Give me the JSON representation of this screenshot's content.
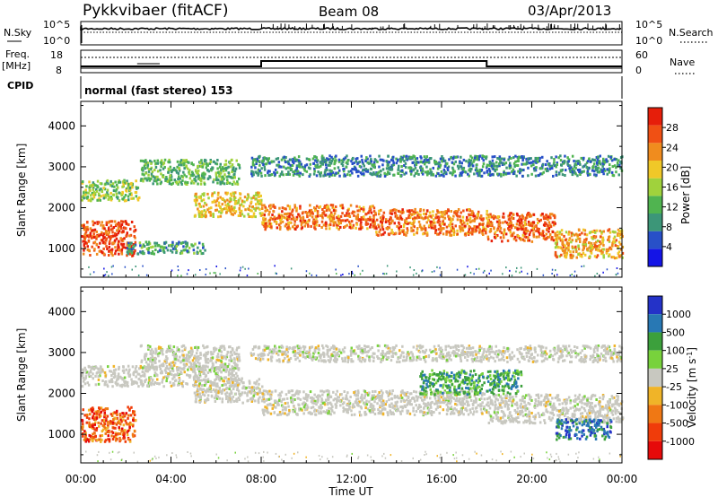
{
  "header": {
    "station": "Pykkvibaer (fitACF)",
    "beam": "Beam 08",
    "date": "03/Apr/2013"
  },
  "noise_panel": {
    "left_label": "N.Sky",
    "right_label": "N.Search",
    "left_ticks": [
      "10^5",
      "10^0"
    ],
    "right_ticks": [
      "10^5",
      "10^0"
    ]
  },
  "freq_panel": {
    "left_label_1": "Freq.",
    "left_label_2": "[MHz]",
    "left_ticks": [
      "18",
      "8"
    ],
    "right_label": "Nave",
    "right_ticks": [
      "60",
      "0"
    ]
  },
  "cpid": {
    "label": "CPID",
    "text": "normal (fast stereo) 153"
  },
  "chart_data": [
    {
      "type": "heatmap",
      "name": "power",
      "ylabel": "Slant Range [km]",
      "y_ticks": [
        "1000",
        "2000",
        "3000",
        "4000"
      ],
      "ylim": [
        300,
        4600
      ],
      "xlim": [
        0,
        24
      ],
      "colorbar": {
        "label": "Power [dB]",
        "ticks": [
          "4",
          "8",
          "12",
          "16",
          "20",
          "24",
          "28"
        ],
        "range": [
          0,
          32
        ],
        "colors": [
          "#1414e6",
          "#2850c8",
          "#3c9678",
          "#50b450",
          "#a0d23c",
          "#f0c828",
          "#f08c1e",
          "#f05014",
          "#e61e0a"
        ]
      },
      "echo_bands": [
        {
          "x": [
            0.0,
            2.4
          ],
          "y": [
            850,
            1700
          ],
          "level": 28
        },
        {
          "x": [
            0.0,
            2.6
          ],
          "y": [
            2200,
            2700
          ],
          "level": 14
        },
        {
          "x": [
            2.6,
            7.0
          ],
          "y": [
            2600,
            3200
          ],
          "level": 12
        },
        {
          "x": [
            2.0,
            5.5
          ],
          "y": [
            900,
            1200
          ],
          "level": 10
        },
        {
          "x": [
            5.0,
            8.0
          ],
          "y": [
            1800,
            2400
          ],
          "level": 20
        },
        {
          "x": [
            8.0,
            13.0
          ],
          "y": [
            1500,
            2100
          ],
          "level": 26
        },
        {
          "x": [
            13.0,
            18.0
          ],
          "y": [
            1350,
            2000
          ],
          "level": 26
        },
        {
          "x": [
            18.0,
            21.0
          ],
          "y": [
            1200,
            1900
          ],
          "level": 27
        },
        {
          "x": [
            21.0,
            24.0
          ],
          "y": [
            800,
            1500
          ],
          "level": 22
        },
        {
          "x": [
            7.5,
            24.0
          ],
          "y": [
            2800,
            3300
          ],
          "level": 8
        }
      ]
    },
    {
      "type": "heatmap",
      "name": "velocity",
      "ylabel": "Slant Range [km]",
      "y_ticks": [
        "1000",
        "2000",
        "3000",
        "4000"
      ],
      "ylim": [
        300,
        4600
      ],
      "xlim": [
        0,
        24
      ],
      "colorbar": {
        "label": "Velocity [m s^-1]",
        "ticks": [
          "1000",
          "500",
          "100",
          "25",
          "-25",
          "-100",
          "-500",
          "-1000"
        ],
        "colors": [
          "#2432c8",
          "#2878b4",
          "#3ca03c",
          "#78d23c",
          "#c8c8c0",
          "#f0b428",
          "#f07814",
          "#f03c0a",
          "#e60a0a"
        ]
      },
      "echo_bands": [
        {
          "x": [
            0.0,
            2.4
          ],
          "y": [
            850,
            1700
          ],
          "velocity": -400
        },
        {
          "x": [
            0.0,
            7.0
          ],
          "y": [
            2200,
            2700
          ],
          "velocity": 0
        },
        {
          "x": [
            2.6,
            7.0
          ],
          "y": [
            2600,
            3200
          ],
          "velocity": 0
        },
        {
          "x": [
            5.0,
            8.0
          ],
          "y": [
            1800,
            2400
          ],
          "velocity": 0
        },
        {
          "x": [
            8.0,
            18.0
          ],
          "y": [
            1500,
            2100
          ],
          "velocity": 0
        },
        {
          "x": [
            15.0,
            19.5
          ],
          "y": [
            2000,
            2600
          ],
          "velocity": 400
        },
        {
          "x": [
            18.0,
            24.0
          ],
          "y": [
            1300,
            2000
          ],
          "velocity": 0
        },
        {
          "x": [
            21.0,
            23.5
          ],
          "y": [
            900,
            1400
          ],
          "velocity": 600
        },
        {
          "x": [
            7.5,
            24.0
          ],
          "y": [
            2800,
            3200
          ],
          "velocity": 0
        }
      ]
    }
  ],
  "x_axis": {
    "ticks": [
      "00:00",
      "04:00",
      "08:00",
      "12:00",
      "16:00",
      "20:00",
      "00:00"
    ],
    "label": "Time UT"
  }
}
